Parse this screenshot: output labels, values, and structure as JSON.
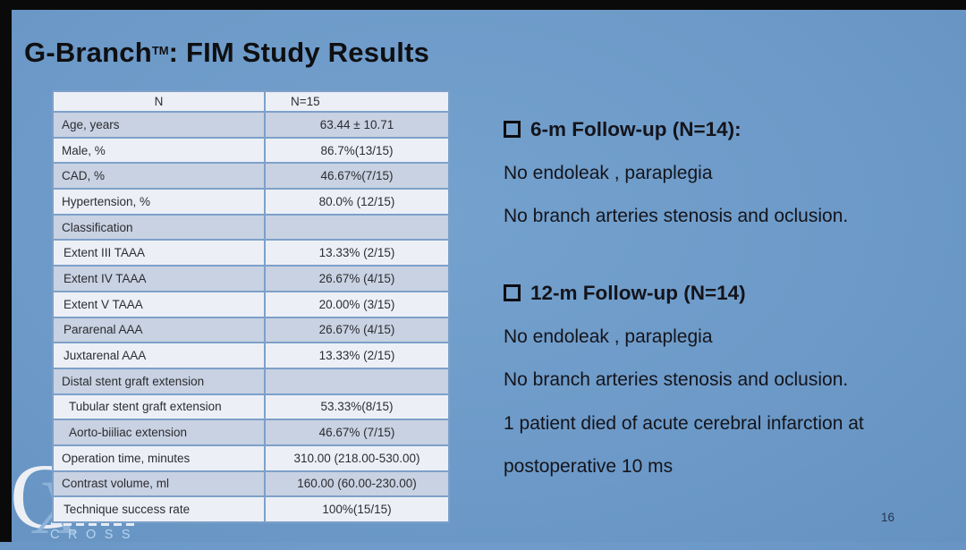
{
  "slide": {
    "title": {
      "prefix": "G-Branch",
      "trademark": "TM",
      "suffix": ": FIM Study Results"
    },
    "page_number": "16"
  },
  "table": {
    "header": {
      "label": "N",
      "value": "N=15"
    },
    "rows": [
      {
        "label": "Age, years",
        "value": "63.44 ± 10.71",
        "indent": 0
      },
      {
        "label": "Male, %",
        "value": "86.7%(13/15)",
        "indent": 0
      },
      {
        "label": "CAD, %",
        "value": "46.67%(7/15)",
        "indent": 0
      },
      {
        "label": "Hypertension, %",
        "value": "80.0% (12/15)",
        "indent": 0
      },
      {
        "label": "Classification",
        "value": "",
        "indent": 0
      },
      {
        "label": "Extent III TAAA",
        "value": "13.33% (2/15)",
        "indent": 2
      },
      {
        "label": "Extent IV TAAA",
        "value": "26.67% (4/15)",
        "indent": 2
      },
      {
        "label": "Extent V TAAA",
        "value": "20.00% (3/15)",
        "indent": 2
      },
      {
        "label": "Pararenal AAA",
        "value": "26.67% (4/15)",
        "indent": 2
      },
      {
        "label": "Juxtarenal AAA",
        "value": "13.33% (2/15)",
        "indent": 2
      },
      {
        "label": "Distal stent graft extension",
        "value": "",
        "indent": 0
      },
      {
        "label": "Tubular stent graft extension",
        "value": "53.33%(8/15)",
        "indent": 8
      },
      {
        "label": "Aorto-biiliac extension",
        "value": "46.67% (7/15)",
        "indent": 8
      },
      {
        "label": "Operation time, minutes",
        "value": "310.00 (218.00-530.00)",
        "indent": 0
      },
      {
        "label": "Contrast volume, ml",
        "value": "160.00 (60.00-230.00)",
        "indent": 0
      },
      {
        "label": "Technique success rate",
        "value": "100%(15/15)",
        "indent": 2
      }
    ]
  },
  "notes": {
    "blocks": [
      {
        "title": "6-m Follow-up (N=14):",
        "lines": [
          "No endoleak , paraplegia",
          "No branch arteries stenosis and oclusion."
        ]
      },
      {
        "title": "12-m Follow-up (N=14)",
        "lines": [
          "No endoleak , paraplegia",
          "No branch arteries stenosis and oclusion.",
          "1 patient died of acute cerebral infarction at",
          "postoperative 10 ms"
        ]
      }
    ]
  },
  "logo": {
    "monogram_c": "C",
    "monogram_x": "X",
    "wordmark": "CROSS"
  },
  "colors": {
    "slide_background": "#6d9ac8",
    "table_border": "#7da0c9",
    "table_row_light": "#ecf0f6",
    "table_row_dark": "#c8d2e2",
    "text_dark": "#14141b"
  }
}
